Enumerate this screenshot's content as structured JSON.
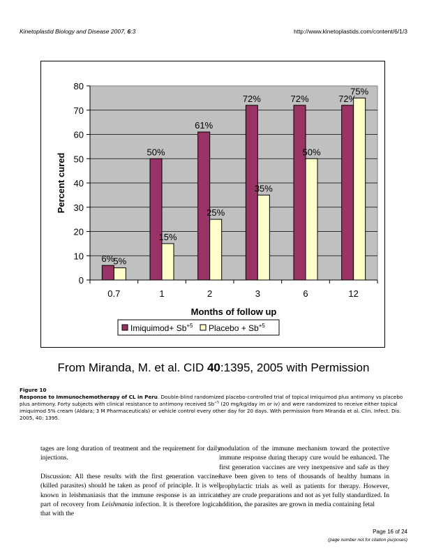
{
  "header": {
    "journal": "Kinetoplastid Biology and Disease",
    "year_vol": " 2007, ",
    "vol_bold": "6",
    "issue": ":3",
    "url": "http://www.kinetoplastids.com/content/6/1/3"
  },
  "chart_data": {
    "type": "bar",
    "categories": [
      "0.7",
      "1",
      "2",
      "3",
      "6",
      "12"
    ],
    "series": [
      {
        "name": "Imiquimod+ Sb+5",
        "values": [
          6,
          50,
          61,
          72,
          72,
          72
        ],
        "labels": [
          "6%",
          "50%",
          "61%",
          "72%",
          "72%",
          "72%"
        ],
        "color": "#993366"
      },
      {
        "name": "Placebo + Sb+5",
        "values": [
          5,
          15,
          25,
          35,
          50,
          75
        ],
        "labels": [
          "5%",
          "15%",
          "25%",
          "35%",
          "50%",
          "75%"
        ],
        "color": "#FFFFCC"
      }
    ],
    "xlabel": "Months of follow up",
    "ylabel": "Percent cured",
    "ylim": [
      0,
      80
    ],
    "yticks": [
      0,
      10,
      20,
      30,
      40,
      50,
      60,
      70,
      80
    ],
    "grid": true,
    "plot_bg": "#C0C0C0",
    "legend_position": "bottom",
    "legend": {
      "s1_main": "Imiquimod+ Sb",
      "s1_sup": "+5",
      "s2_main": "Placebo + Sb",
      "s2_sup": "+5"
    }
  },
  "credit": {
    "pre": "From Miranda, M. et al. CID ",
    "bold": "40",
    "post": ":1395, 2005 with Permission"
  },
  "caption": {
    "label": "Figure 10",
    "title": "Response to Immunochemotherapy of CL in Peru",
    "text_a": ". Double-blind randomized placebo-controlled trial of topical Imiquimod plus antimony vs placebo plus antimony. Forty subjects with clinical resistance to antimony received Sb",
    "sup": "+5",
    "text_b": " (20 mg/kg/day im or iv) and were randomized to receive either topical imiquimod 5% cream (Aldara; 3 M Pharmaceuticals) or vehicle control every other day for 20 days. With permission from Miranda et al. Clin. Infect. Dis. 2005, 40: 1395."
  },
  "body": {
    "left_p1": "tages are long duration of treatment and the requirement for daily injections.",
    "left_p2_a": "Discussion: All these results with the first generation vaccines (killed parasites) should be taken as proof of principle. It is well known in leishmaniasis that the immune response is an intricate part of recovery from ",
    "left_p2_italic": "Leishmania",
    "left_p2_b": " infection. It is therefore logical that with the",
    "right_p1": "modulation of the immune mechanism toward the protective immune response during therapy cure would be enhanced. The first generation vaccines are very inexpensive and safe as they have been given to tens of thousands of healthy humans in prophylactic trials as well as patients for therapy. However, they are crude preparations and not as yet fully standardized. In addition, the parasites are grown in media containing fetal"
  },
  "footer": {
    "page": "Page 16 of 24",
    "note": "(page number not for citation purposes)"
  }
}
